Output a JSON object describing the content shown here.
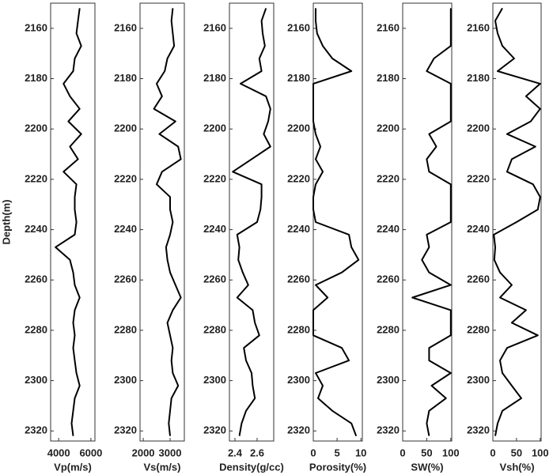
{
  "chart_data": [
    {
      "type": "line",
      "ylabel": "Depth(m)",
      "xlabel": "Vp(m/s)",
      "color": "#000000",
      "depth": [
        2152,
        2157,
        2162,
        2167,
        2172,
        2177,
        2182,
        2187,
        2192,
        2197,
        2202,
        2207,
        2212,
        2217,
        2222,
        2227,
        2232,
        2237,
        2242,
        2247,
        2252,
        2257,
        2262,
        2267,
        2272,
        2277,
        2282,
        2287,
        2292,
        2297,
        2302,
        2307,
        2312,
        2317,
        2322
      ],
      "values": [
        5300,
        5200,
        5100,
        5400,
        5000,
        4900,
        4300,
        4700,
        5300,
        4600,
        5400,
        4700,
        5200,
        4300,
        5100,
        5000,
        5000,
        5100,
        5000,
        3800,
        4700,
        4900,
        5000,
        5300,
        5000,
        4900,
        5000,
        4900,
        5000,
        5100,
        5300,
        5000,
        4900,
        4800,
        4900
      ],
      "xlim": [
        3500,
        6250
      ],
      "xticks": [
        4000,
        6000
      ],
      "ylim": [
        2150,
        2324
      ],
      "yticks": [
        2160,
        2180,
        2200,
        2220,
        2240,
        2260,
        2280,
        2300,
        2320
      ]
    },
    {
      "type": "line",
      "xlabel": "Vs(m/s)",
      "color": "#000000",
      "depth": [
        2152,
        2157,
        2162,
        2167,
        2172,
        2177,
        2182,
        2187,
        2192,
        2197,
        2202,
        2207,
        2212,
        2217,
        2222,
        2227,
        2232,
        2237,
        2242,
        2247,
        2252,
        2257,
        2262,
        2267,
        2272,
        2277,
        2282,
        2287,
        2292,
        2297,
        2302,
        2307,
        2312,
        2317,
        2322
      ],
      "values": [
        3100,
        3050,
        3100,
        3150,
        2900,
        2800,
        2500,
        2700,
        2400,
        3200,
        2600,
        3300,
        3400,
        2700,
        2500,
        3000,
        3000,
        3100,
        3000,
        2850,
        2900,
        3000,
        3200,
        3400,
        3100,
        2900,
        3000,
        3100,
        3050,
        3100,
        3300,
        3050,
        3000,
        2950,
        3000
      ],
      "xlim": [
        1880,
        3530
      ],
      "xticks": [
        2000,
        3000
      ],
      "ylim": [
        2150,
        2324
      ],
      "yticks": [
        2160,
        2180,
        2200,
        2220,
        2240,
        2260,
        2280,
        2300,
        2320
      ]
    },
    {
      "type": "line",
      "xlabel": "Density(g/cc)",
      "color": "#000000",
      "depth": [
        2152,
        2157,
        2162,
        2167,
        2172,
        2177,
        2182,
        2187,
        2192,
        2197,
        2202,
        2207,
        2212,
        2217,
        2222,
        2227,
        2232,
        2237,
        2242,
        2247,
        2252,
        2257,
        2262,
        2267,
        2272,
        2277,
        2282,
        2287,
        2292,
        2297,
        2302,
        2307,
        2312,
        2317,
        2322
      ],
      "values": [
        2.68,
        2.64,
        2.65,
        2.67,
        2.62,
        2.64,
        2.45,
        2.68,
        2.72,
        2.7,
        2.66,
        2.72,
        2.55,
        2.38,
        2.64,
        2.64,
        2.63,
        2.6,
        2.42,
        2.44,
        2.43,
        2.47,
        2.52,
        2.42,
        2.56,
        2.58,
        2.62,
        2.48,
        2.5,
        2.55,
        2.56,
        2.58,
        2.5,
        2.46,
        2.44
      ],
      "xlim": [
        2.35,
        2.75
      ],
      "xticks": [
        2.4,
        2.6
      ],
      "ylim": [
        2150,
        2324
      ],
      "yticks": [
        2160,
        2180,
        2200,
        2220,
        2240,
        2260,
        2280,
        2300,
        2320
      ]
    },
    {
      "type": "line",
      "xlabel": "Porosity(%)",
      "color": "#000000",
      "depth": [
        2152,
        2157,
        2162,
        2167,
        2172,
        2177,
        2182,
        2187,
        2192,
        2197,
        2202,
        2207,
        2212,
        2217,
        2222,
        2227,
        2232,
        2237,
        2242,
        2247,
        2252,
        2257,
        2262,
        2267,
        2272,
        2277,
        2282,
        2287,
        2292,
        2297,
        2302,
        2307,
        2312,
        2317,
        2322
      ],
      "values": [
        0.5,
        0.5,
        0.8,
        2,
        4,
        8,
        0,
        0,
        0,
        0,
        0.5,
        1.5,
        0.5,
        2,
        0.5,
        0,
        0,
        0.5,
        7.5,
        8,
        9.5,
        6,
        0.5,
        3,
        0,
        0,
        0,
        6,
        7.5,
        0.5,
        2,
        1,
        4,
        8,
        9
      ],
      "xlim": [
        0,
        10.3
      ],
      "xticks": [
        0,
        5,
        10
      ],
      "ylim": [
        2150,
        2324
      ],
      "yticks": [
        2160,
        2180,
        2200,
        2220,
        2240,
        2260,
        2280,
        2300,
        2320
      ]
    },
    {
      "type": "line",
      "xlabel": "SW(%)",
      "color": "#000000",
      "depth": [
        2152,
        2157,
        2162,
        2167,
        2172,
        2177,
        2182,
        2187,
        2192,
        2197,
        2202,
        2207,
        2212,
        2217,
        2222,
        2227,
        2232,
        2237,
        2242,
        2247,
        2252,
        2257,
        2262,
        2267,
        2272,
        2277,
        2282,
        2287,
        2292,
        2297,
        2302,
        2307,
        2312,
        2317,
        2322
      ],
      "values": [
        100,
        100,
        100,
        100,
        65,
        50,
        100,
        100,
        100,
        100,
        55,
        70,
        50,
        55,
        100,
        100,
        100,
        100,
        50,
        55,
        40,
        55,
        100,
        20,
        100,
        100,
        100,
        55,
        55,
        100,
        60,
        90,
        55,
        50,
        55
      ],
      "xlim": [
        0,
        102
      ],
      "xticks": [
        0,
        50,
        100
      ],
      "ylim": [
        2150,
        2324
      ],
      "yticks": [
        2160,
        2180,
        2200,
        2220,
        2240,
        2260,
        2280,
        2300,
        2320
      ]
    },
    {
      "type": "line",
      "xlabel": "Vsh(%)",
      "color": "#000000",
      "depth": [
        2152,
        2157,
        2162,
        2167,
        2172,
        2177,
        2182,
        2187,
        2192,
        2197,
        2202,
        2207,
        2212,
        2217,
        2222,
        2227,
        2232,
        2237,
        2242,
        2247,
        2252,
        2257,
        2262,
        2267,
        2272,
        2277,
        2282,
        2287,
        2292,
        2297,
        2302,
        2307,
        2312,
        2317,
        2322
      ],
      "values": [
        20,
        5,
        10,
        20,
        45,
        10,
        100,
        70,
        100,
        80,
        30,
        90,
        40,
        30,
        85,
        100,
        95,
        50,
        2,
        5,
        3,
        15,
        40,
        15,
        70,
        40,
        95,
        30,
        15,
        20,
        40,
        60,
        20,
        10,
        5
      ],
      "xlim": [
        0,
        102
      ],
      "xticks": [
        0,
        50,
        100
      ],
      "ylim": [
        2150,
        2324
      ],
      "yticks": [
        2160,
        2180,
        2200,
        2220,
        2240,
        2260,
        2280,
        2300,
        2320
      ]
    }
  ]
}
